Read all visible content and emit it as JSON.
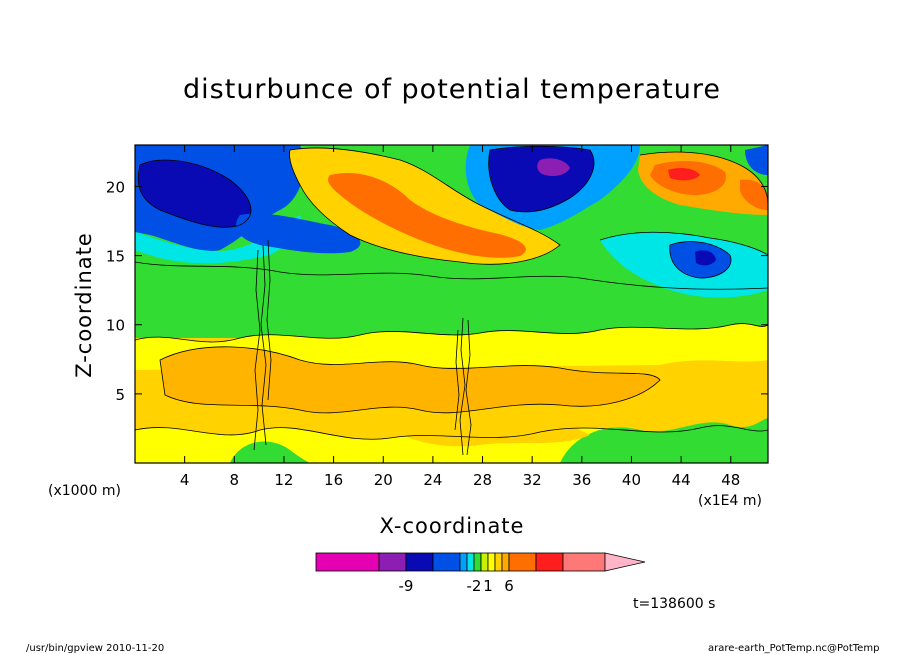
{
  "chart_data": {
    "type": "heatmap",
    "title": "disturbunce of potential temperature",
    "xlabel": "X-coordinate",
    "ylabel": "Z-coordinate",
    "x_unit_left": "(x1000 m)",
    "x_unit_right": "(x1E4 m)",
    "xlim": [
      0,
      51
    ],
    "ylim": [
      0,
      23
    ],
    "x_ticks": [
      4,
      8,
      12,
      16,
      20,
      24,
      28,
      32,
      36,
      40,
      44,
      48
    ],
    "y_ticks": [
      5,
      10,
      15,
      20
    ],
    "colorbar": {
      "colors": [
        "#e600b4",
        "#8c1eb4",
        "#0a0ab4",
        "#0050e6",
        "#00a0ff",
        "#00e6e6",
        "#32dc32",
        "#c8f000",
        "#ffff00",
        "#ffd200",
        "#ffaa00",
        "#ff6e00",
        "#ff1e1e",
        "#ff7878",
        "#ffb4c8"
      ],
      "labels": [
        {
          "text": "-9",
          "after_index": 1
        },
        {
          "text": "-2",
          "after_index": 5
        },
        {
          "text": "1",
          "after_index": 7
        },
        {
          "text": "6",
          "after_index": 10
        }
      ]
    },
    "bands": [
      {
        "z": [
          0.0,
          1.2
        ],
        "level": "yellow"
      },
      {
        "z": [
          1.2,
          9.0
        ],
        "level": "orange-light"
      },
      {
        "z": [
          9.0,
          13.5
        ],
        "level": "green"
      },
      {
        "z": [
          13.5,
          16.5
        ],
        "level": "green / cyan / blue (right)"
      },
      {
        "z": [
          16.5,
          23.0
        ],
        "level": "blue (left, top-right) / orange (center, right)"
      }
    ],
    "time_label": "t=138600 s"
  },
  "footer": {
    "left": "/usr/bin/gpview  2010-11-20",
    "right": "arare-earth_PotTemp.nc@PotTemp"
  }
}
